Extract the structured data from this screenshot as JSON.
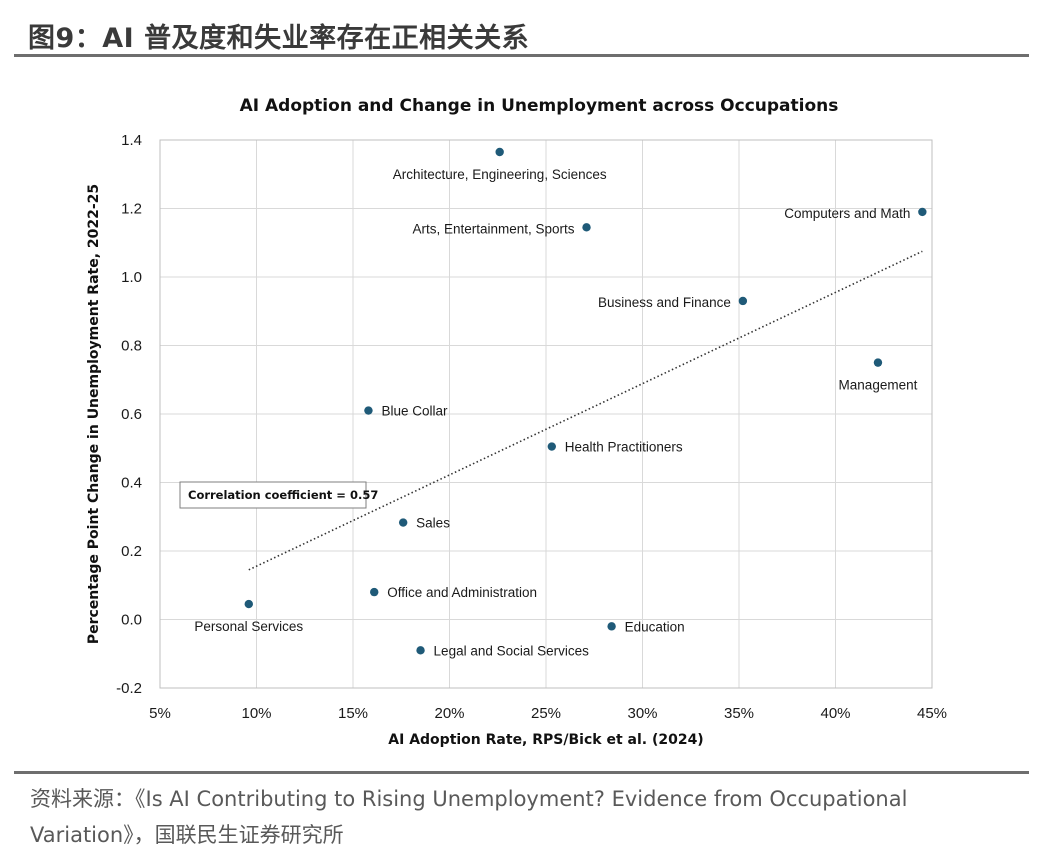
{
  "header": {
    "title": "图9：AI 普及度和失业率存在正相关关系"
  },
  "source": {
    "text": "资料来源：《Is AI Contributing to Rising Unemployment? Evidence from Occupational Variation》，国联民生证券研究所"
  },
  "chart_data": {
    "type": "scatter",
    "title": "AI Adoption and Change in Unemployment across Occupations",
    "xlabel": "AI Adoption Rate, RPS/Bick et al. (2024)",
    "ylabel": "Percentage Point Change in Unemployment Rate, 2022-25",
    "xlim": [
      5,
      45
    ],
    "ylim": [
      -0.2,
      1.4
    ],
    "x_ticks": [
      5,
      10,
      15,
      20,
      25,
      30,
      35,
      40,
      45
    ],
    "x_tick_labels": [
      "5%",
      "10%",
      "15%",
      "20%",
      "25%",
      "30%",
      "35%",
      "40%",
      "45%"
    ],
    "y_ticks": [
      -0.2,
      0.0,
      0.2,
      0.4,
      0.6,
      0.8,
      1.0,
      1.2,
      1.4
    ],
    "y_tick_labels": [
      "-0.2",
      "0.0",
      "0.2",
      "0.4",
      "0.6",
      "0.8",
      "1.0",
      "1.2",
      "1.4"
    ],
    "grid": "vertical-and-horizontal",
    "marker_color": "#1f5a78",
    "points": [
      {
        "label": "Architecture, Engineering, Sciences",
        "x": 22.6,
        "y": 1.365,
        "label_pos": "below"
      },
      {
        "label": "Computers and Math",
        "x": 44.5,
        "y": 1.19,
        "label_pos": "left"
      },
      {
        "label": "Arts, Entertainment, Sports",
        "x": 27.1,
        "y": 1.145,
        "label_pos": "left"
      },
      {
        "label": "Business and Finance",
        "x": 35.2,
        "y": 0.93,
        "label_pos": "left"
      },
      {
        "label": "Management",
        "x": 42.2,
        "y": 0.75,
        "label_pos": "below"
      },
      {
        "label": "Blue Collar",
        "x": 15.8,
        "y": 0.61,
        "label_pos": "right"
      },
      {
        "label": "Health Practitioners",
        "x": 25.3,
        "y": 0.505,
        "label_pos": "right"
      },
      {
        "label": "Sales",
        "x": 17.6,
        "y": 0.283,
        "label_pos": "right"
      },
      {
        "label": "Office and Administration",
        "x": 16.1,
        "y": 0.08,
        "label_pos": "right"
      },
      {
        "label": "Personal Services",
        "x": 9.6,
        "y": 0.045,
        "label_pos": "below"
      },
      {
        "label": "Education",
        "x": 28.4,
        "y": -0.02,
        "label_pos": "right"
      },
      {
        "label": "Legal and Social Services",
        "x": 18.5,
        "y": -0.09,
        "label_pos": "right"
      }
    ],
    "trendline": {
      "style": "dotted",
      "x": [
        9.6,
        44.5
      ],
      "y": [
        0.145,
        1.075
      ]
    },
    "annotation": {
      "text": "Correlation coefficient = 0.57"
    }
  }
}
